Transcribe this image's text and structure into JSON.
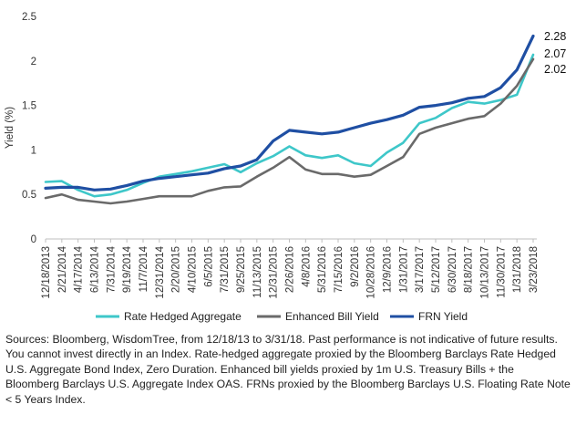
{
  "chart_data": {
    "type": "line",
    "title": "",
    "xlabel": "",
    "ylabel": "Yield (%)",
    "ylim": [
      0,
      2.5
    ],
    "yticks": [
      "0",
      "0.5",
      "1",
      "1.5",
      "2",
      "2.5"
    ],
    "categories": [
      "12/18/2013",
      "2/21/2014",
      "4/17/2014",
      "6/13/2014",
      "7/31/2014",
      "9/19/2014",
      "11/7/2014",
      "12/31/2014",
      "2/20/2015",
      "4/10/2015",
      "6/5/2015",
      "7/31/2015",
      "9/25/2015",
      "11/13/2015",
      "12/31/2015",
      "2/26/2016",
      "4/8/2016",
      "5/31/2016",
      "7/15/2016",
      "9/2/2016",
      "10/28/2016",
      "12/9/2016",
      "1/31/2017",
      "3/17/2017",
      "5/12/2017",
      "6/30/2017",
      "8/18/2017",
      "10/13/2017",
      "11/30/2017",
      "1/31/2018",
      "3/23/2018"
    ],
    "series": [
      {
        "name": "Rate Hedged Aggregate",
        "color": "#3ec7c9",
        "values": [
          0.64,
          0.65,
          0.55,
          0.48,
          0.5,
          0.55,
          0.63,
          0.7,
          0.73,
          0.76,
          0.8,
          0.84,
          0.75,
          0.85,
          0.93,
          1.04,
          0.94,
          0.91,
          0.94,
          0.85,
          0.82,
          0.97,
          1.08,
          1.3,
          1.36,
          1.47,
          1.54,
          1.52,
          1.56,
          1.62,
          2.07
        ]
      },
      {
        "name": "Enhanced Bill Yield",
        "color": "#6a6a6a",
        "values": [
          0.46,
          0.5,
          0.44,
          0.42,
          0.4,
          0.42,
          0.45,
          0.48,
          0.48,
          0.48,
          0.54,
          0.58,
          0.59,
          0.7,
          0.8,
          0.92,
          0.78,
          0.73,
          0.73,
          0.7,
          0.72,
          0.82,
          0.92,
          1.18,
          1.25,
          1.3,
          1.35,
          1.38,
          1.52,
          1.72,
          2.02
        ]
      },
      {
        "name": "FRN Yield",
        "color": "#1f4fa3",
        "values": [
          0.57,
          0.58,
          0.58,
          0.55,
          0.56,
          0.6,
          0.65,
          0.68,
          0.7,
          0.72,
          0.74,
          0.79,
          0.82,
          0.89,
          1.1,
          1.22,
          1.2,
          1.18,
          1.2,
          1.25,
          1.3,
          1.34,
          1.39,
          1.48,
          1.5,
          1.53,
          1.58,
          1.6,
          1.7,
          1.9,
          2.28
        ]
      }
    ],
    "end_labels": [
      "2.28",
      "2.07",
      "2.02"
    ],
    "legend": [
      "Rate Hedged Aggregate",
      "Enhanced Bill Yield",
      "FRN Yield"
    ],
    "legend_position": "bottom",
    "grid": false
  },
  "footnote": "Sources: Bloomberg, WisdomTree, from 12/18/13 to 3/31/18. Past performance is not indicative of future results. You cannot invest directly in an Index. Rate-hedged aggregate proxied by the Bloomberg Barclays Rate Hedged U.S. Aggregate Bond Index, Zero Duration. Enhanced bill yields proxied by 1m U.S. Treasury Bills + the Bloomberg Barclays U.S. Aggregate Index OAS. FRNs proxied by the Bloomberg Barclays U.S. Floating Rate Note < 5 Years Index."
}
